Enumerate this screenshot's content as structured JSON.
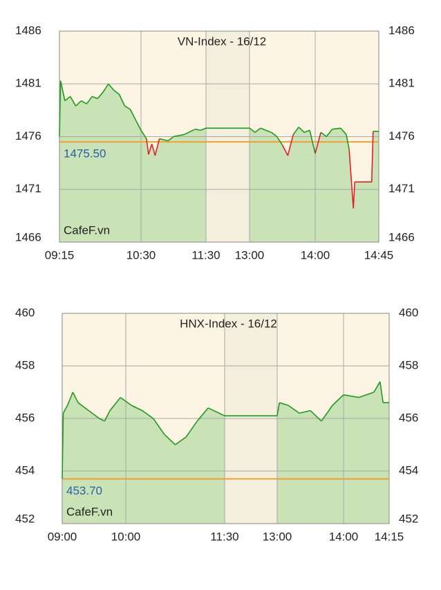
{
  "chart_data": [
    {
      "type": "line",
      "title": "VN-Index - 16/12",
      "watermark": "CafeF.vn",
      "x": [
        "09:15",
        "09:16",
        "09:20",
        "09:25",
        "09:30",
        "09:35",
        "09:40",
        "09:45",
        "09:50",
        "09:55",
        "10:00",
        "10:05",
        "10:10",
        "10:15",
        "10:20",
        "10:25",
        "10:30",
        "10:35",
        "10:37",
        "10:40",
        "10:43",
        "10:47",
        "10:55",
        "11:00",
        "11:10",
        "11:20",
        "11:25",
        "11:30",
        "13:00",
        "13:05",
        "13:10",
        "13:15",
        "13:20",
        "13:25",
        "13:30",
        "13:35",
        "13:40",
        "13:45",
        "13:50",
        "13:55",
        "14:00",
        "14:04",
        "14:08",
        "14:12",
        "14:18",
        "14:22",
        "14:24",
        "14:27",
        "14:28",
        "14:40",
        "14:41",
        "14:45"
      ],
      "values": [
        1476.0,
        1481.3,
        1479.4,
        1479.8,
        1478.9,
        1479.4,
        1479.1,
        1479.8,
        1479.6,
        1480.2,
        1481.0,
        1480.4,
        1480.0,
        1478.9,
        1478.6,
        1477.6,
        1476.6,
        1475.8,
        1474.3,
        1475.3,
        1474.2,
        1475.8,
        1475.6,
        1476.0,
        1476.2,
        1476.7,
        1476.6,
        1476.8,
        1476.8,
        1476.4,
        1476.8,
        1476.6,
        1476.4,
        1476.0,
        1475.2,
        1474.2,
        1476.2,
        1476.9,
        1476.4,
        1476.6,
        1474.4,
        1476.4,
        1476.0,
        1476.7,
        1476.8,
        1476.2,
        1474.8,
        1469.2,
        1471.7,
        1471.7,
        1476.5,
        1476.5
      ],
      "color": "#1e9a1e",
      "below_color": "#e02020",
      "fill_color": "#c9e3b6",
      "background": "#fdf4e3",
      "shaded_color": "#f4efdc",
      "reference": {
        "value": 1475.5,
        "label": "1475.50"
      },
      "reference_color": "#f0a030",
      "shaded_range": [
        "11:30",
        "13:00"
      ],
      "xticks": [
        "09:15",
        "10:30",
        "11:30",
        "13:00",
        "14:00",
        "14:45"
      ],
      "ylim": [
        1466,
        1486
      ],
      "yticks": [
        1466,
        1471,
        1476,
        1481,
        1486
      ],
      "grid": true
    },
    {
      "type": "line",
      "title": "HNX-Index - 16/12",
      "watermark": "CafeF.vn",
      "x": [
        "09:00",
        "09:01",
        "09:05",
        "09:10",
        "09:15",
        "09:25",
        "09:35",
        "09:40",
        "09:45",
        "09:55",
        "10:05",
        "10:15",
        "10:25",
        "10:35",
        "10:45",
        "10:55",
        "11:05",
        "11:15",
        "11:25",
        "11:30",
        "13:00",
        "13:02",
        "13:10",
        "13:20",
        "13:30",
        "13:40",
        "13:50",
        "14:00",
        "14:05",
        "14:10",
        "14:12",
        "14:13",
        "14:15"
      ],
      "values": [
        453.7,
        456.2,
        456.5,
        457.0,
        456.6,
        456.3,
        456.0,
        455.9,
        456.3,
        456.8,
        456.5,
        456.3,
        456.0,
        455.4,
        455.0,
        455.3,
        455.9,
        456.4,
        456.2,
        456.1,
        456.1,
        456.6,
        456.5,
        456.2,
        456.3,
        455.9,
        456.5,
        456.9,
        456.8,
        457.0,
        457.4,
        456.6,
        456.6
      ],
      "color": "#1e9a1e",
      "below_color": "#e02020",
      "fill_color": "#c9e3b6",
      "background": "#fdf4e3",
      "shaded_color": "#f4efdc",
      "reference": {
        "value": 453.7,
        "label": "453.70"
      },
      "reference_color": "#f0a030",
      "shaded_range": [
        "11:30",
        "13:00"
      ],
      "xticks": [
        "09:00",
        "10:00",
        "11:30",
        "13:00",
        "14:00",
        "14:15"
      ],
      "ylim": [
        452,
        460
      ],
      "yticks": [
        452,
        454,
        456,
        458,
        460
      ],
      "grid": true
    }
  ]
}
